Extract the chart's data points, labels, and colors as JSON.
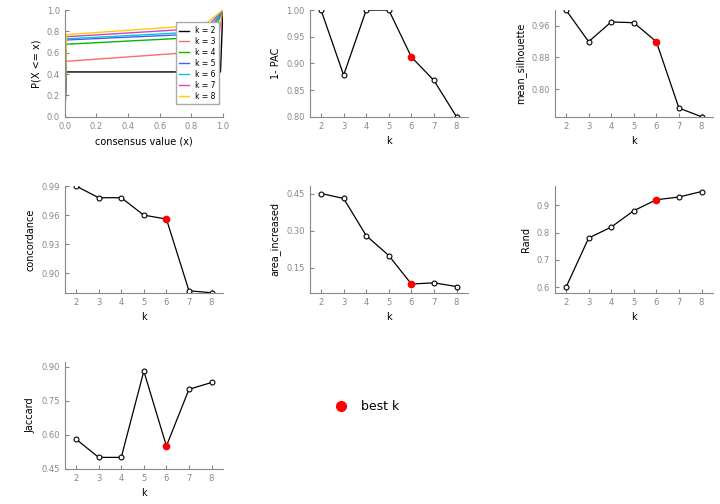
{
  "pac": {
    "x": [
      2,
      3,
      4,
      5,
      6,
      7,
      8
    ],
    "y": [
      1.0,
      0.878,
      1.0,
      1.0,
      0.912,
      0.868,
      0.8
    ],
    "best_k": 6,
    "ylabel": "1- PAC",
    "ylim": [
      0.8,
      1.0
    ]
  },
  "silhouette": {
    "x": [
      2,
      3,
      4,
      5,
      6,
      7,
      8
    ],
    "y": [
      1.0,
      0.92,
      0.97,
      0.968,
      0.92,
      0.752,
      0.73
    ],
    "best_k": 6,
    "ylabel": "mean_silhouette",
    "ylim": [
      0.73,
      1.0
    ]
  },
  "concordance": {
    "x": [
      2,
      3,
      4,
      5,
      6,
      7,
      8
    ],
    "y": [
      0.99,
      0.978,
      0.978,
      0.96,
      0.956,
      0.882,
      0.88
    ],
    "best_k": 6,
    "ylabel": "concordance",
    "ylim": [
      0.88,
      0.99
    ]
  },
  "area_increased": {
    "x": [
      2,
      3,
      4,
      5,
      6,
      7,
      8
    ],
    "y": [
      0.45,
      0.43,
      0.28,
      0.2,
      0.085,
      0.09,
      0.075
    ],
    "best_k": 6,
    "ylabel": "area_increased",
    "ylim": [
      0.05,
      0.48
    ]
  },
  "rand": {
    "x": [
      2,
      3,
      4,
      5,
      6,
      7,
      8
    ],
    "y": [
      0.6,
      0.78,
      0.82,
      0.88,
      0.92,
      0.93,
      0.95
    ],
    "best_k": 6,
    "ylabel": "Rand",
    "ylim": [
      0.58,
      0.97
    ]
  },
  "jaccard": {
    "x": [
      2,
      3,
      4,
      5,
      6,
      7,
      8
    ],
    "y": [
      0.58,
      0.5,
      0.5,
      0.88,
      0.55,
      0.8,
      0.83
    ],
    "best_k": 6,
    "ylabel": "Jaccard",
    "ylim": [
      0.45,
      0.92
    ]
  },
  "legend_labels": [
    "k = 2",
    "k = 3",
    "k = 4",
    "k = 5",
    "k = 6",
    "k = 7",
    "k = 8"
  ],
  "legend_colors": [
    "#000000",
    "#FF6B6B",
    "#00BB00",
    "#5555FF",
    "#00CCCC",
    "#CC44CC",
    "#FFCC00"
  ],
  "xlabel_k": "k",
  "xlabel_ecdf": "consensus value (x)",
  "ylabel_ecdf": "P(X <= x)",
  "ecdf_ylim": [
    0.0,
    1.0
  ],
  "ecdf_xlim": [
    0.0,
    1.0
  ]
}
